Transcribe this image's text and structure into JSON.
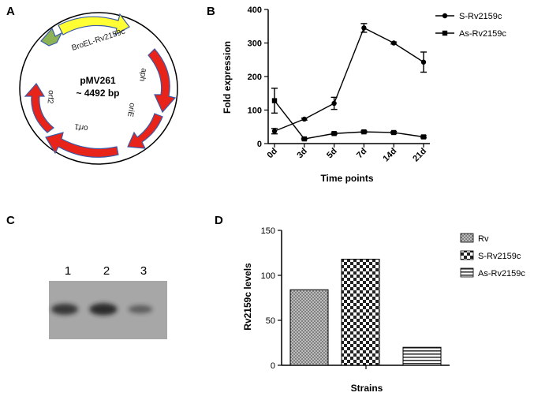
{
  "panels": {
    "a": "A",
    "b": "B",
    "c": "C",
    "d": "D"
  },
  "plasmid": {
    "name": "pMV261",
    "size": "~ 4492 bp",
    "genes": [
      "BroEL-Rv2159c",
      "aph",
      "oriE",
      "orf1",
      "orf2"
    ],
    "colors": {
      "hsp60": "#8db356",
      "insert": "#ffff33",
      "feature": "#e8231a",
      "outline": "#3a5aa8"
    }
  },
  "blot": {
    "lanes": [
      "1",
      "2",
      "3"
    ],
    "background": "#a7a7a7",
    "band_relative_intensity": [
      0.75,
      0.9,
      0.3
    ]
  },
  "chart_data": [
    {
      "panel": "B",
      "type": "line",
      "xlabel": "Time points",
      "ylabel": "Fold expression",
      "categories": [
        "0d",
        "3d",
        "5d",
        "7d",
        "14d",
        "21d"
      ],
      "ylim": [
        0,
        400
      ],
      "yticks": [
        0,
        100,
        200,
        300,
        400
      ],
      "legend_position": "top-right",
      "series": [
        {
          "name": "S-Rv2159c",
          "marker": "circle",
          "values": [
            37,
            73,
            120,
            345,
            300,
            243
          ],
          "errors": [
            8,
            3,
            18,
            13,
            3,
            30
          ]
        },
        {
          "name": "As-Rv2159c",
          "marker": "square",
          "values": [
            128,
            14,
            30,
            35,
            33,
            20
          ],
          "errors": [
            37,
            2,
            3,
            3,
            3,
            3
          ]
        }
      ]
    },
    {
      "panel": "D",
      "type": "bar",
      "xlabel": "Strains",
      "ylabel": "Rv2159c levels",
      "categories": [
        "Rv",
        "S-Rv2159c",
        "As-Rv2159c"
      ],
      "values": [
        84,
        118,
        20
      ],
      "ylim": [
        0,
        150
      ],
      "yticks": [
        0,
        50,
        100,
        150
      ],
      "legend_position": "top-right",
      "patterns": [
        "dots",
        "checker",
        "hstripes"
      ]
    }
  ]
}
